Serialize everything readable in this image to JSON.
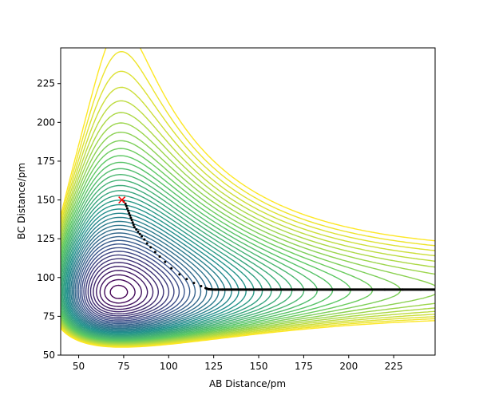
{
  "chart_data": {
    "type": "contour",
    "title": "",
    "xlabel": "AB Distance/pm",
    "ylabel": "BC Distance/pm",
    "xlim": [
      40,
      248
    ],
    "ylim": [
      50,
      248
    ],
    "xticks": [
      50,
      75,
      100,
      125,
      150,
      175,
      200,
      225
    ],
    "yticks": [
      50,
      75,
      100,
      125,
      150,
      175,
      200,
      225
    ],
    "grid": false,
    "legend": "none",
    "colormap": [
      "#440154",
      "#3b528b",
      "#21918c",
      "#5ec962",
      "#fde725"
    ],
    "surface": {
      "description_of_levels": "nested contour lines of a potential energy surface; low energy (purple) in the exit valley near BC 92 pm, high energy (yellow) toward walls and the large-separation corner",
      "level_count": 40
    },
    "trajectory": {
      "start_marker": {
        "x": 74,
        "y": 150,
        "symbol": "x",
        "color": "#ff0000"
      },
      "points": [
        [
          75,
          149
        ],
        [
          76,
          147.5
        ],
        [
          76.5,
          146
        ],
        [
          77,
          144.5
        ],
        [
          77.5,
          143
        ],
        [
          78,
          141.5
        ],
        [
          78.5,
          140
        ],
        [
          79,
          138.5
        ],
        [
          79.5,
          137
        ],
        [
          80,
          135.5
        ],
        [
          80.5,
          134
        ],
        [
          81,
          132.5
        ],
        [
          82,
          131
        ],
        [
          83,
          129.5
        ],
        [
          84,
          128
        ],
        [
          85,
          126.5
        ],
        [
          86.5,
          124.5
        ],
        [
          88,
          122
        ],
        [
          90,
          119.5
        ],
        [
          92.5,
          116.5
        ],
        [
          95,
          113.5
        ],
        [
          98,
          110
        ],
        [
          101.5,
          106
        ],
        [
          106,
          102
        ],
        [
          110,
          99
        ],
        [
          114,
          96.5
        ],
        [
          118,
          94.5
        ],
        [
          120.5,
          93.2
        ],
        [
          122,
          92.5
        ],
        [
          124,
          92.3
        ],
        [
          126,
          92.2
        ],
        [
          130,
          92.2
        ],
        [
          135,
          92.2
        ],
        [
          140,
          92.2
        ],
        [
          145,
          92.2
        ],
        [
          150,
          92.2
        ],
        [
          160,
          92.2
        ],
        [
          170,
          92.2
        ],
        [
          180,
          92.2
        ],
        [
          190,
          92.2
        ],
        [
          200,
          92.2
        ],
        [
          210,
          92.2
        ],
        [
          220,
          92.2
        ],
        [
          230,
          92.2
        ],
        [
          240,
          92.2
        ],
        [
          248,
          92.2
        ]
      ]
    }
  }
}
